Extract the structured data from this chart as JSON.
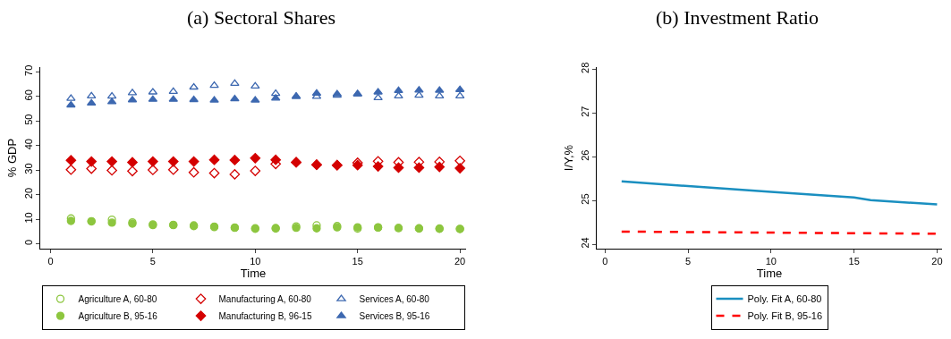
{
  "chart_data": [
    {
      "type": "scatter",
      "title": "(a) Sectoral Shares",
      "xlabel": "Time",
      "ylabel": "% GDP",
      "x": [
        1,
        2,
        3,
        4,
        5,
        6,
        7,
        8,
        9,
        10,
        11,
        12,
        13,
        14,
        15,
        16,
        17,
        18,
        19,
        20
      ],
      "xlim": [
        -0.5,
        20.3
      ],
      "xticks": [
        0,
        5,
        10,
        15,
        20
      ],
      "ylim": [
        -2,
        72
      ],
      "yticks": [
        0,
        10,
        20,
        30,
        40,
        50,
        60,
        70
      ],
      "grid": false,
      "legend": "bottom",
      "series": [
        {
          "name": "Agriculture A, 60-80",
          "color": "#8dc63f",
          "marker": "circle-open",
          "values": [
            10.3,
            9.2,
            9.8,
            8.7,
            7.9,
            7.7,
            7.5,
            6.8,
            6.6,
            6.1,
            6.2,
            7.1,
            7.5,
            7.2,
            6.2,
            6.7,
            6.4,
            6.3,
            6.2,
            6.1
          ]
        },
        {
          "name": "Manufacturing A, 60-80",
          "color": "#d40000",
          "marker": "diamond-open",
          "values": [
            30.2,
            30.6,
            29.9,
            29.6,
            30.1,
            30.2,
            29.1,
            28.8,
            28.3,
            29.7,
            32.5,
            33.2,
            32.2,
            32,
            33,
            33.6,
            33.2,
            33.3,
            33.4,
            33.8
          ]
        },
        {
          "name": "Services A, 60-80",
          "color": "#3d68b0",
          "marker": "triangle-open",
          "values": [
            59.2,
            60.2,
            60.1,
            61.5,
            61.8,
            62,
            63.8,
            64.5,
            65.3,
            64.2,
            61.2,
            60,
            60,
            60.5,
            61,
            59.5,
            60.2,
            60.5,
            60.2,
            60.2
          ]
        },
        {
          "name": "Agriculture B, 95-16",
          "color": "#8dc63f",
          "marker": "circle",
          "values": [
            9.3,
            9.1,
            8.6,
            8.2,
            7.6,
            7.6,
            7.2,
            7.0,
            6.5,
            6.3,
            6.4,
            6.5,
            6.3,
            6.7,
            6.7,
            6.6,
            6.4,
            6.2,
            6.1,
            6.0
          ]
        },
        {
          "name": "Manufacturing B, 96-15",
          "color": "#d40000",
          "marker": "diamond",
          "values": [
            34,
            33.5,
            33.5,
            33.2,
            33.5,
            33.5,
            33.5,
            34.2,
            34.1,
            34.9,
            34.2,
            33.2,
            32.2,
            32,
            32,
            31.5,
            31,
            31,
            31.3,
            30.8
          ]
        },
        {
          "name": "Services B, 95-16",
          "color": "#3d68b0",
          "marker": "triangle",
          "values": [
            56.5,
            57.3,
            57.8,
            58.6,
            58.8,
            58.8,
            58.7,
            58.5,
            59,
            58.5,
            59.3,
            60,
            61.3,
            61,
            61,
            61.8,
            62.4,
            62.6,
            62.5,
            62.8
          ]
        }
      ]
    },
    {
      "type": "line",
      "title": "(b) Investment Ratio",
      "xlabel": "Time",
      "ylabel": "I/Y,%",
      "xlim": [
        -0.5,
        20.3
      ],
      "xticks": [
        0,
        5,
        10,
        15,
        20
      ],
      "ylim": [
        23.9,
        28.05
      ],
      "yticks": [
        24,
        25,
        26,
        27,
        28
      ],
      "grid": false,
      "legend": "bottom",
      "marker": "none",
      "series": [
        {
          "name": "Poly. Fit A, 60-80",
          "color": "#1a8fc0",
          "line_style": "solid",
          "x": [
            1,
            5,
            10,
            15,
            16,
            20
          ],
          "values": [
            25.44,
            25.33,
            25.2,
            25.07,
            25.01,
            24.91
          ]
        },
        {
          "name": "Poly. Fit B, 95-16",
          "color": "#ff0000",
          "line_style": "dashed",
          "x": [
            1,
            20
          ],
          "values": [
            24.29,
            24.24
          ]
        }
      ]
    }
  ]
}
